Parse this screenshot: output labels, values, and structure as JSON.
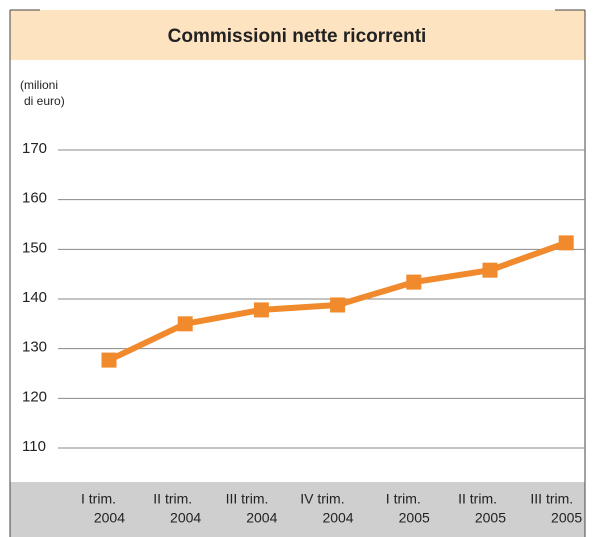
{
  "chart_data": {
    "type": "line",
    "title": "Commissioni nette ricorrenti",
    "y_label": [
      "(milioni",
      "di euro)"
    ],
    "categories": [
      [
        "I trim.",
        "2004"
      ],
      [
        "II trim.",
        "2004"
      ],
      [
        "III trim.",
        "2004"
      ],
      [
        "IV trim.",
        "2004"
      ],
      [
        "I trim.",
        "2005"
      ],
      [
        "II trim.",
        "2005"
      ],
      [
        "III trim.",
        "2005"
      ]
    ],
    "series": [
      {
        "name": "Commissioni nette ricorrenti",
        "color": "#f08a2c",
        "values": [
          127.7,
          135,
          137.8,
          138.8,
          143.4,
          145.8,
          151.3
        ]
      }
    ],
    "ylim": [
      100,
      180
    ],
    "yticks": [
      110,
      120,
      130,
      140,
      150,
      160,
      170
    ],
    "grid": true
  }
}
